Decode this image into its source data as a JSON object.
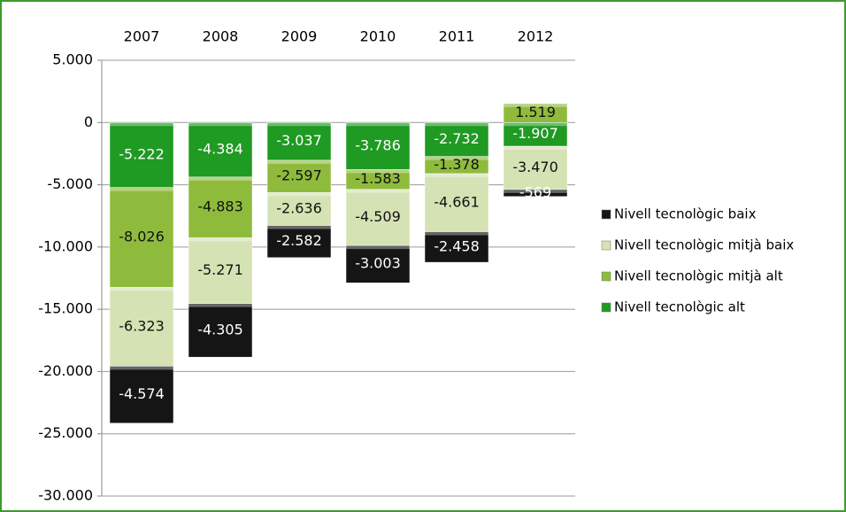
{
  "chart_data": {
    "type": "stacked_bar",
    "categories": [
      "2007",
      "2008",
      "2009",
      "2010",
      "2011",
      "2012"
    ],
    "series": [
      {
        "name": "Nivell tecnològic alt",
        "color": "#1f9a22",
        "values": [
          -5222,
          -4384,
          -3037,
          -3786,
          -2732,
          -1907
        ],
        "value_labels": [
          "-5.222",
          "-4.384",
          "-3.037",
          "-3.786",
          "-2.732",
          "-1.907"
        ]
      },
      {
        "name": "Nivell tecnològic mitjà alt",
        "color": "#8fbb3c",
        "values": [
          -8026,
          -4883,
          -2597,
          -1583,
          -1378,
          1519
        ],
        "value_labels": [
          "-8.026",
          "-4.883",
          "-2.597",
          "-1.583",
          "-1.378",
          "1.519"
        ]
      },
      {
        "name": "Nivell tecnològic mitjà baix",
        "color": "#d5e2b4",
        "values": [
          -6323,
          -5271,
          -2636,
          -4509,
          -4661,
          -3470
        ],
        "value_labels": [
          "-6.323",
          "-5.271",
          "-2.636",
          "-4.509",
          "-4.661",
          "-3.470"
        ]
      },
      {
        "name": "Nivell tecnològic baix",
        "color": "#151515",
        "values": [
          -4574,
          -4305,
          -2582,
          -3003,
          -2458,
          -569
        ],
        "value_labels": [
          "-4.574",
          "-4.305",
          "-2.582",
          "-3.003",
          "-2.458",
          "-569"
        ]
      }
    ],
    "ylim": [
      -30000,
      5000
    ],
    "yticks": [
      {
        "value": -30000,
        "label": "-30.000"
      },
      {
        "value": -25000,
        "label": "-25.000"
      },
      {
        "value": -20000,
        "label": "-20.000"
      },
      {
        "value": -15000,
        "label": "-15.000"
      },
      {
        "value": -10000,
        "label": "-10.000"
      },
      {
        "value": -5000,
        "label": "-5.000"
      },
      0,
      {
        "value": 5000,
        "label": "5.000"
      }
    ],
    "grid": true,
    "legend": "right"
  }
}
